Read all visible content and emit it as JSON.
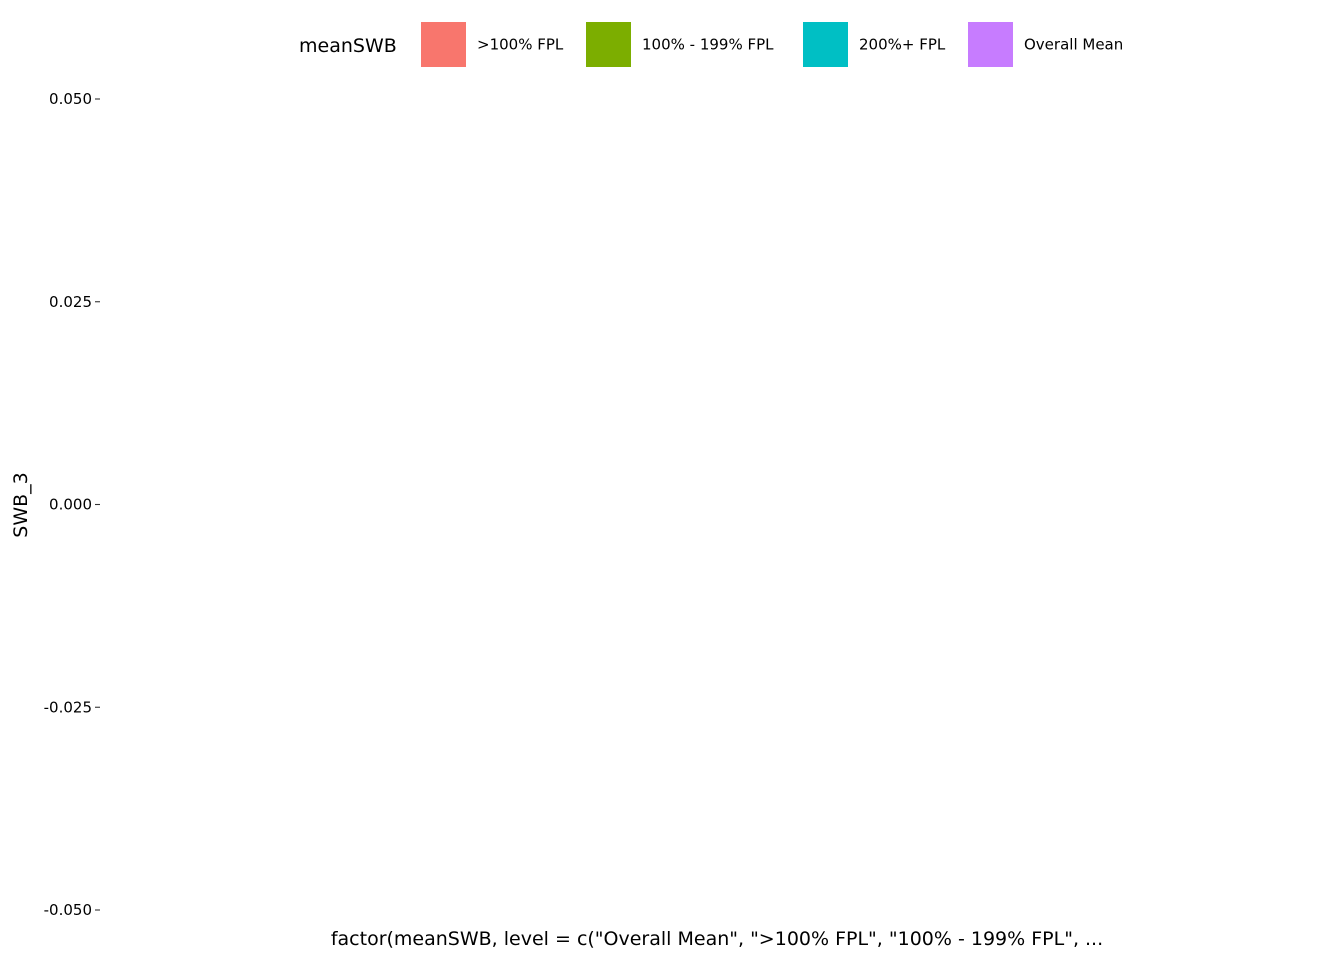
{
  "chart_data": {
    "type": "bar",
    "title": "",
    "xlabel": "factor(meanSWB, level = c(\"Overall Mean\", \">100% FPL\", \"100% - 199% FPL\", ...",
    "ylabel": "SWB_3",
    "ylim": [
      -0.05,
      0.05
    ],
    "yticks": [
      0.05,
      0.025,
      0.0,
      -0.025,
      -0.05
    ],
    "ytick_labels": [
      "0.050",
      "0.025",
      "0.000",
      "-0.025",
      "-0.050"
    ],
    "categories": [],
    "values": [],
    "grid": false,
    "legend": {
      "title": "meanSWB",
      "position": "top",
      "entries": [
        {
          "label": ">100% FPL",
          "color": "#F8766D"
        },
        {
          "label": "100% - 199% FPL",
          "color": "#7CAE00"
        },
        {
          "label": "200%+ FPL",
          "color": "#00BFC4"
        },
        {
          "label": "Overall Mean",
          "color": "#C77CFF"
        }
      ]
    }
  }
}
